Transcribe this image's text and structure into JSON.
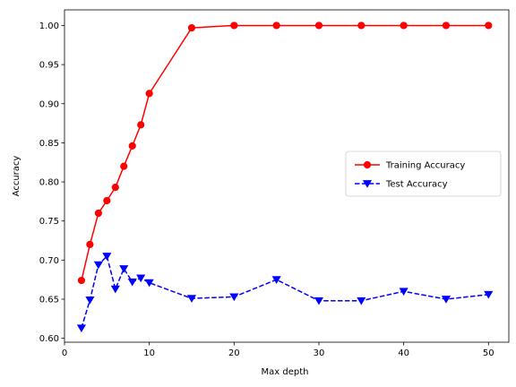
{
  "chart_data": {
    "type": "line",
    "title": "",
    "xlabel": "Max depth",
    "ylabel": "Accuracy",
    "xlim": [
      0,
      52.4
    ],
    "ylim": [
      0.595,
      1.02
    ],
    "xticks": [
      0,
      10,
      20,
      30,
      40,
      50
    ],
    "xtick_labels": [
      "0",
      "10",
      "20",
      "30",
      "40",
      "50"
    ],
    "yticks": [
      0.6,
      0.65,
      0.7,
      0.75,
      0.8,
      0.85,
      0.9,
      0.95,
      1.0
    ],
    "ytick_labels": [
      "0.60",
      "0.65",
      "0.70",
      "0.75",
      "0.80",
      "0.85",
      "0.90",
      "0.95",
      "1.00"
    ],
    "grid": false,
    "legend_position": "center-right",
    "x": [
      2,
      3,
      4,
      5,
      6,
      7,
      8,
      9,
      10,
      15,
      20,
      25,
      30,
      35,
      40,
      45,
      50
    ],
    "series": [
      {
        "name": "Training Accuracy",
        "color": "#ff0000",
        "line_style": "solid",
        "marker": "circle",
        "values": [
          0.674,
          0.72,
          0.76,
          0.776,
          0.793,
          0.82,
          0.846,
          0.873,
          0.913,
          0.997,
          1.0,
          1.0,
          1.0,
          1.0,
          1.0,
          1.0,
          1.0
        ]
      },
      {
        "name": "Test Accuracy",
        "color": "#0000ff",
        "line_style": "dashed",
        "marker": "triangle-down",
        "values": [
          0.613,
          0.649,
          0.694,
          0.705,
          0.663,
          0.689,
          0.672,
          0.677,
          0.671,
          0.651,
          0.653,
          0.675,
          0.648,
          0.648,
          0.66,
          0.65,
          0.656
        ]
      }
    ]
  }
}
